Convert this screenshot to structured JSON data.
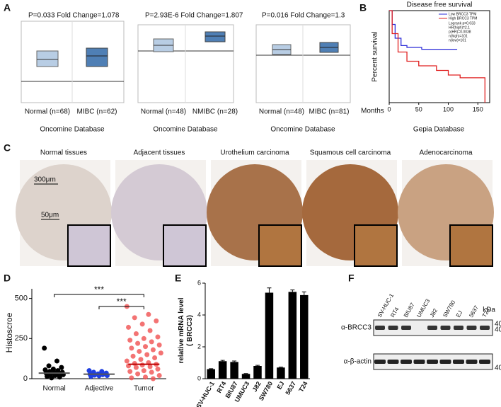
{
  "panels": {
    "A": {
      "label": "A",
      "plots": [
        {
          "stats": "P=0.033   Fold Change=1.078",
          "groups": [
            "Normal (n=68)",
            "MIBC (n=62)"
          ]
        },
        {
          "stats": "P=2.93E-6   Fold Change=1.807",
          "groups": [
            "Normal (n=48)",
            "NMIBC (n=28)"
          ]
        },
        {
          "stats": "P=0.016   Fold Change=1.3",
          "groups": [
            "Normal (n=48)",
            "MIBC (n=81)"
          ]
        }
      ],
      "source": "Oncomine Database"
    },
    "B": {
      "label": "B",
      "source": "Gepia Database",
      "legend_stats": [
        "Logrank p=0.033",
        "HR(high)=2.1",
        "p(HR)=0.0038",
        "n(high)=101",
        "n(low)=101"
      ]
    },
    "C": {
      "label": "C",
      "titles": [
        "Normal tissues",
        "Adjacent  tissues",
        "Urothelium carcinoma",
        "Squamous  cell carcinoma",
        "Adenocarcinoma"
      ],
      "scale_large": "300μm",
      "scale_small": "50μm"
    },
    "F": {
      "label": "F",
      "cell_lines": [
        "SV-HUC-1",
        "RT4",
        "BIU87",
        "UMUC3",
        "J82",
        "SW780",
        "EJ",
        "5637",
        "T24"
      ],
      "unit": "kDa",
      "rows": [
        "α-BRCC3",
        "α-β-actin"
      ],
      "sizes": [
        "40",
        "40",
        "40"
      ]
    }
  },
  "chart_data": [
    {
      "type": "line",
      "title": "Disease free survival",
      "x_label": "Months",
      "y_label": "Percent survival",
      "xlim": [
        0,
        170
      ],
      "ylim": [
        0,
        1
      ],
      "xticks": [
        0,
        50,
        100,
        150
      ],
      "series": [
        {
          "name": "Low BRCC3 TPM",
          "color": "#2b2bd8",
          "x": [
            0,
            5,
            10,
            20,
            30,
            55,
            115
          ],
          "values": [
            1,
            0.85,
            0.7,
            0.62,
            0.6,
            0.58,
            0.58
          ]
        },
        {
          "name": "High BRCC3 TPM",
          "color": "#e02020",
          "x": [
            0,
            5,
            15,
            30,
            50,
            80,
            100,
            120,
            160,
            162
          ],
          "values": [
            1,
            0.75,
            0.55,
            0.45,
            0.4,
            0.35,
            0.3,
            0.27,
            0.27,
            0
          ]
        }
      ]
    },
    {
      "type": "scatter",
      "label": "D",
      "y_label": "Histoscroe",
      "ylim": [
        0,
        560
      ],
      "yticks": [
        0,
        250,
        500
      ],
      "categories": [
        "Normal",
        "Adjective",
        "Tumor"
      ],
      "colors": [
        "#000000",
        "#1f3fe0",
        "#f05050"
      ],
      "means": [
        35,
        28,
        90
      ],
      "annotations": [
        "***",
        "***"
      ],
      "groups": [
        [
          190,
          110,
          80,
          70,
          60,
          55,
          50,
          45,
          40,
          38,
          35,
          30,
          28,
          25,
          20,
          15,
          10,
          5
        ],
        [
          50,
          45,
          40,
          35,
          30,
          28,
          25,
          22,
          20,
          18,
          15
        ],
        [
          450,
          400,
          380,
          360,
          340,
          320,
          300,
          280,
          260,
          250,
          240,
          230,
          220,
          210,
          200,
          190,
          180,
          170,
          160,
          150,
          140,
          130,
          120,
          110,
          100,
          95,
          90,
          85,
          80,
          75,
          70,
          60,
          50,
          45,
          40,
          30,
          20,
          10,
          5,
          0
        ]
      ]
    },
    {
      "type": "bar",
      "label": "E",
      "y_label": "relative mRNA level\n( BRCC3)",
      "color": "#000000",
      "ylim": [
        0,
        6
      ],
      "yticks": [
        0,
        2,
        4,
        6
      ],
      "categories": [
        "SV-HUC-1",
        "RT4",
        "BIU87",
        "UMUC3",
        "J82",
        "SW780",
        "EJ",
        "5637",
        "T24"
      ],
      "values": [
        0.6,
        1.1,
        1.05,
        0.3,
        0.8,
        5.4,
        0.7,
        5.45,
        5.25
      ],
      "errors": [
        0.03,
        0.05,
        0.06,
        0.02,
        0.04,
        0.3,
        0.03,
        0.12,
        0.2
      ]
    }
  ]
}
